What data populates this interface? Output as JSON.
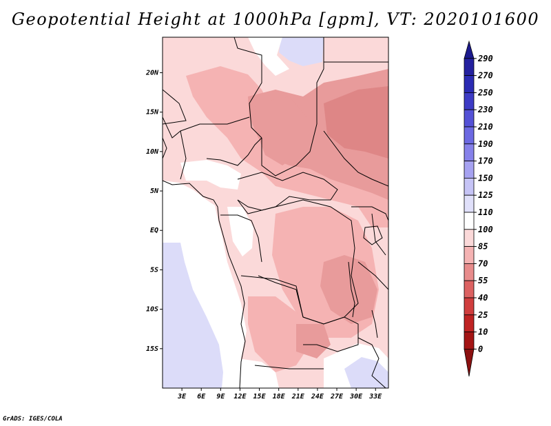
{
  "title": "Geopotential Height at 1000hPa [gpm], VT: 2020101600",
  "credit": "GrADS: IGES/COLA",
  "map": {
    "lat_labels": [
      "20N",
      "15N",
      "10N",
      "5N",
      "EQ",
      "5S",
      "10S",
      "15S"
    ],
    "lon_labels": [
      "3E",
      "6E",
      "9E",
      "12E",
      "15E",
      "18E",
      "21E",
      "24E",
      "27E",
      "30E",
      "33E"
    ],
    "lon_range": [
      0,
      35
    ],
    "lat_range": [
      -20,
      24.5
    ]
  },
  "colorbar": {
    "levels": [
      "290",
      "270",
      "250",
      "230",
      "210",
      "190",
      "170",
      "150",
      "125",
      "110",
      "100",
      "85",
      "70",
      "55",
      "40",
      "25",
      "10",
      "0"
    ],
    "colors": [
      "#1c1a8e",
      "#24219f",
      "#2b2bb3",
      "#3d3bc5",
      "#5451d6",
      "#6c69e2",
      "#8681ea",
      "#a6a2f1",
      "#c6c4f6",
      "#e0e0fa",
      "#ffffff",
      "#fbd9d9",
      "#f5b3b3",
      "#e88c8c",
      "#dc6262",
      "#d03e3e",
      "#bf2323",
      "#a41515",
      "#8b1010"
    ]
  },
  "colors": {
    "ocean": "#dcdcf9",
    "white_zone": "#ffffff",
    "light_pink": "#fbd9d9",
    "mid_pink": "#f5b3b3",
    "dark_pink": "#e89b9b",
    "darkest_pink": "#de8686"
  }
}
